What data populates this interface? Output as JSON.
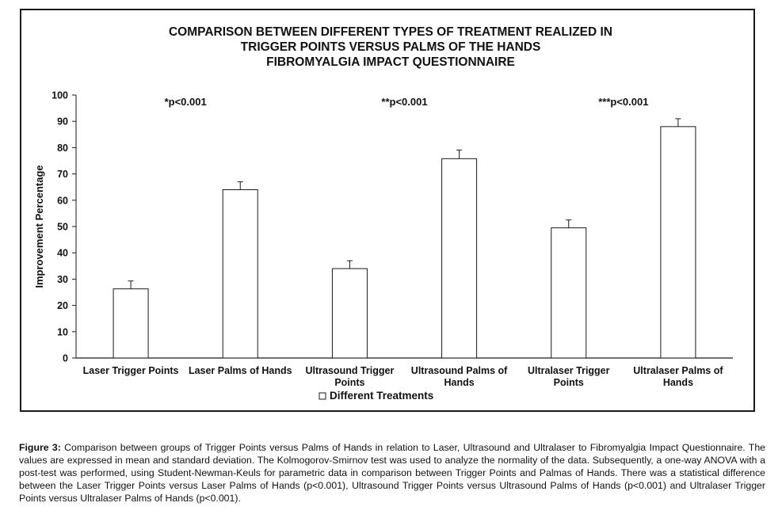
{
  "chart_data": {
    "type": "bar",
    "title": [
      "COMPARISON BETWEEN DIFFERENT TYPES OF TREATMENT REALIZED IN",
      "TRIGGER POINTS VERSUS PALMS OF THE HANDS",
      "FIBROMYALGIA IMPACT QUESTIONNAIRE"
    ],
    "ylabel": "Improvement Percentage",
    "ylim": [
      0,
      100
    ],
    "yticks": [
      0,
      10,
      20,
      30,
      40,
      50,
      60,
      70,
      80,
      90,
      100
    ],
    "categories": [
      [
        "Laser Trigger Points"
      ],
      [
        "Laser Palms of Hands"
      ],
      [
        "Ultrasound Trigger",
        "Points"
      ],
      [
        "Ultrasound Palms of",
        "Hands"
      ],
      [
        "Ultralaser Trigger",
        "Points"
      ],
      [
        "Ultralaser Palms of",
        "Hands"
      ]
    ],
    "series": [
      {
        "name": "Different Treatments",
        "values": [
          26.3,
          64.0,
          34.0,
          75.8,
          49.5,
          88.0
        ],
        "error": [
          3.0,
          3.0,
          3.0,
          3.3,
          3.0,
          3.0
        ]
      }
    ],
    "annotations": [
      "*p<0.001",
      "**p<0.001",
      "***p<0.001"
    ],
    "legend_position": "bottom-center",
    "grid": false,
    "bar_fill": "#ffffff",
    "bar_stroke": "#1a1a1a"
  },
  "caption": {
    "label": "Figure 3:",
    "text": " Comparison between groups of Trigger Points versus Palms of Hands in relation to Laser, Ultrasound and Ultralaser to Fibromyalgia Impact Questionnaire. The values are expressed in mean and standard deviation. The Kolmogorov-Smirnov test was used to analyze the normality of the data. Subsequently, a one-way ANOVA with a post-test was performed, using Student-Newman-Keuls for parametric data in comparison between Trigger Points and Palmas of Hands. There was a statistical difference between the Laser Trigger Points versus Laser Palms of Hands (p<0.001), Ultrasound Trigger Points versus Ultrasound Palms of Hands (p<0.001) and Ultralaser Trigger Points versus Ultralaser Palms of Hands (p<0.001)."
  }
}
